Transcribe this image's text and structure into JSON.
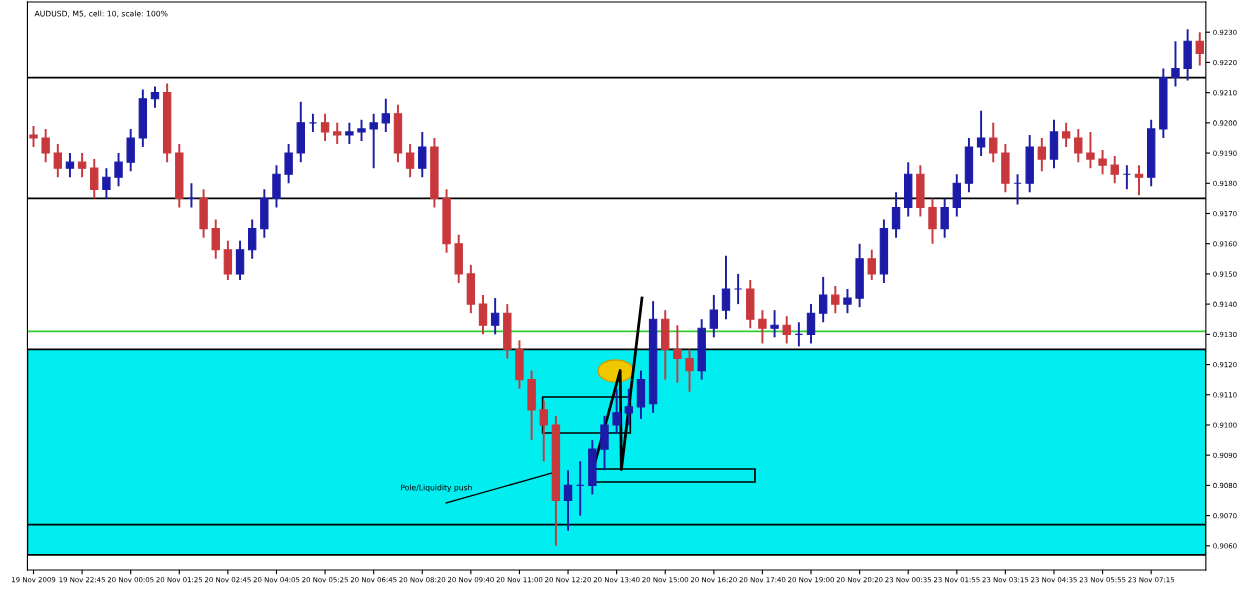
{
  "chart_data": {
    "type": "candlestick",
    "title": "AUDUSD, M5, cell: 10, scale: 100%",
    "categories": [
      "19 Nov 2009",
      null,
      null,
      null,
      "19 Nov 22:45",
      null,
      null,
      null,
      "20 Nov 00:05",
      null,
      null,
      null,
      "20 Nov 01:25",
      null,
      null,
      null,
      "20 Nov 02:45",
      null,
      null,
      null,
      "20 Nov 04:05",
      null,
      null,
      null,
      "20 Nov 05:25",
      null,
      null,
      null,
      "20 Nov 06:45",
      null,
      null,
      null,
      "20 Nov 08:20",
      null,
      null,
      null,
      "20 Nov 09:40",
      null,
      null,
      null,
      "20 Nov 11:00",
      null,
      null,
      null,
      "20 Nov 12:20",
      null,
      null,
      null,
      "20 Nov 13:40",
      null,
      null,
      null,
      "20 Nov 15:00",
      null,
      null,
      null,
      "20 Nov 16:20",
      null,
      null,
      null,
      "20 Nov 17:40",
      null,
      null,
      null,
      "20 Nov 19:00",
      null,
      null,
      null,
      "20 Nov 20:20",
      null,
      null,
      null,
      "23 Nov 00:35",
      null,
      null,
      null,
      "23 Nov 01:55",
      null,
      null,
      null,
      "23 Nov 03:15",
      null,
      null,
      null,
      "23 Nov 04:35",
      null,
      null,
      null,
      "23 Nov 05:55",
      null,
      null,
      null,
      "23 Nov 07:15",
      null,
      null,
      null,
      null
    ],
    "ohlc": [
      [
        0.9196,
        0.9199,
        0.9192,
        0.9195
      ],
      [
        0.9195,
        0.9198,
        0.9187,
        0.919
      ],
      [
        0.919,
        0.9193,
        0.9182,
        0.9185
      ],
      [
        0.9185,
        0.919,
        0.9182,
        0.9187
      ],
      [
        0.9187,
        0.919,
        0.9182,
        0.9185
      ],
      [
        0.9185,
        0.9188,
        0.9175,
        0.9178
      ],
      [
        0.9178,
        0.9185,
        0.9175,
        0.9182
      ],
      [
        0.9182,
        0.919,
        0.9179,
        0.9187
      ],
      [
        0.9187,
        0.9198,
        0.9184,
        0.9195
      ],
      [
        0.9195,
        0.9211,
        0.9192,
        0.9208
      ],
      [
        0.9208,
        0.9212,
        0.9205,
        0.921
      ],
      [
        0.921,
        0.9213,
        0.9187,
        0.919
      ],
      [
        0.919,
        0.9193,
        0.9172,
        0.9175
      ],
      [
        0.9175,
        0.918,
        0.9172,
        0.9175
      ],
      [
        0.9175,
        0.9178,
        0.9162,
        0.9165
      ],
      [
        0.9165,
        0.9168,
        0.9155,
        0.9158
      ],
      [
        0.9158,
        0.9161,
        0.9148,
        0.915
      ],
      [
        0.915,
        0.9161,
        0.9148,
        0.9158
      ],
      [
        0.9158,
        0.9168,
        0.9155,
        0.9165
      ],
      [
        0.9165,
        0.9178,
        0.9162,
        0.9175
      ],
      [
        0.9175,
        0.9186,
        0.9172,
        0.9183
      ],
      [
        0.9183,
        0.9193,
        0.918,
        0.919
      ],
      [
        0.919,
        0.9207,
        0.9187,
        0.92
      ],
      [
        0.92,
        0.9203,
        0.9197,
        0.92
      ],
      [
        0.92,
        0.9203,
        0.9194,
        0.9197
      ],
      [
        0.9197,
        0.92,
        0.9193,
        0.9196
      ],
      [
        0.9196,
        0.92,
        0.9193,
        0.9197
      ],
      [
        0.9197,
        0.9201,
        0.9194,
        0.9198
      ],
      [
        0.9198,
        0.9203,
        0.9185,
        0.92
      ],
      [
        0.92,
        0.9208,
        0.9197,
        0.9203
      ],
      [
        0.9203,
        0.9206,
        0.9187,
        0.919
      ],
      [
        0.919,
        0.9193,
        0.9182,
        0.9185
      ],
      [
        0.9185,
        0.9197,
        0.9182,
        0.9192
      ],
      [
        0.9192,
        0.9195,
        0.9172,
        0.9175
      ],
      [
        0.9175,
        0.9178,
        0.9157,
        0.916
      ],
      [
        0.916,
        0.9163,
        0.9147,
        0.915
      ],
      [
        0.915,
        0.9153,
        0.9137,
        0.914
      ],
      [
        0.914,
        0.9143,
        0.913,
        0.9133
      ],
      [
        0.9133,
        0.9142,
        0.913,
        0.9137
      ],
      [
        0.9137,
        0.914,
        0.9122,
        0.9125
      ],
      [
        0.9125,
        0.9128,
        0.9112,
        0.9115
      ],
      [
        0.9115,
        0.9118,
        0.9095,
        0.9105
      ],
      [
        0.9105,
        0.9108,
        0.9088,
        0.91
      ],
      [
        0.91,
        0.9103,
        0.906,
        0.9075
      ],
      [
        0.9075,
        0.9085,
        0.9065,
        0.908
      ],
      [
        0.908,
        0.9088,
        0.907,
        0.908
      ],
      [
        0.908,
        0.9095,
        0.9077,
        0.9092
      ],
      [
        0.9092,
        0.9103,
        0.9085,
        0.91
      ],
      [
        0.91,
        0.9112,
        0.9097,
        0.9104
      ],
      [
        0.9104,
        0.9112,
        0.91,
        0.9106
      ],
      [
        0.9106,
        0.9118,
        0.9102,
        0.9115
      ],
      [
        0.9107,
        0.9141,
        0.9104,
        0.9135
      ],
      [
        0.9135,
        0.9138,
        0.9115,
        0.9125
      ],
      [
        0.9125,
        0.9133,
        0.9114,
        0.9122
      ],
      [
        0.9122,
        0.9125,
        0.9111,
        0.9118
      ],
      [
        0.9118,
        0.9135,
        0.9115,
        0.9132
      ],
      [
        0.9132,
        0.9143,
        0.9129,
        0.9138
      ],
      [
        0.9138,
        0.9156,
        0.9135,
        0.9145
      ],
      [
        0.9145,
        0.915,
        0.914,
        0.9145
      ],
      [
        0.9145,
        0.9148,
        0.9132,
        0.9135
      ],
      [
        0.9135,
        0.9138,
        0.9127,
        0.9132
      ],
      [
        0.9132,
        0.9138,
        0.9129,
        0.9133
      ],
      [
        0.9133,
        0.9136,
        0.9127,
        0.913
      ],
      [
        0.913,
        0.9134,
        0.9126,
        0.913
      ],
      [
        0.913,
        0.914,
        0.9127,
        0.9137
      ],
      [
        0.9137,
        0.9149,
        0.9134,
        0.9143
      ],
      [
        0.9143,
        0.9146,
        0.9137,
        0.914
      ],
      [
        0.914,
        0.9145,
        0.9137,
        0.9142
      ],
      [
        0.9142,
        0.916,
        0.9139,
        0.9155
      ],
      [
        0.9155,
        0.9158,
        0.9148,
        0.915
      ],
      [
        0.915,
        0.9168,
        0.9147,
        0.9165
      ],
      [
        0.9165,
        0.9177,
        0.9162,
        0.9172
      ],
      [
        0.9172,
        0.9187,
        0.9169,
        0.9183
      ],
      [
        0.9183,
        0.9186,
        0.9169,
        0.9172
      ],
      [
        0.9172,
        0.9175,
        0.916,
        0.9165
      ],
      [
        0.9165,
        0.9175,
        0.9162,
        0.9172
      ],
      [
        0.9172,
        0.9183,
        0.9169,
        0.918
      ],
      [
        0.918,
        0.9195,
        0.9177,
        0.9192
      ],
      [
        0.9192,
        0.9204,
        0.9189,
        0.9195
      ],
      [
        0.9195,
        0.92,
        0.9187,
        0.919
      ],
      [
        0.919,
        0.9193,
        0.9177,
        0.918
      ],
      [
        0.918,
        0.9183,
        0.9173,
        0.918
      ],
      [
        0.918,
        0.9196,
        0.9177,
        0.9192
      ],
      [
        0.9192,
        0.9195,
        0.9184,
        0.9188
      ],
      [
        0.9188,
        0.9201,
        0.9185,
        0.9197
      ],
      [
        0.9197,
        0.92,
        0.9192,
        0.9195
      ],
      [
        0.9195,
        0.9198,
        0.9187,
        0.919
      ],
      [
        0.919,
        0.9197,
        0.9185,
        0.9188
      ],
      [
        0.9188,
        0.9191,
        0.9183,
        0.9186
      ],
      [
        0.9186,
        0.9189,
        0.918,
        0.9183
      ],
      [
        0.9183,
        0.9186,
        0.9178,
        0.9183
      ],
      [
        0.9183,
        0.9186,
        0.9176,
        0.9182
      ],
      [
        0.9182,
        0.9201,
        0.9179,
        0.9198
      ],
      [
        0.9198,
        0.9218,
        0.9195,
        0.9215
      ],
      [
        0.9215,
        0.9227,
        0.9212,
        0.9218
      ],
      [
        0.9218,
        0.9231,
        0.9214,
        0.9227
      ],
      [
        0.9227,
        0.923,
        0.9219,
        0.9223
      ]
    ],
    "colors": [
      "#c8383c",
      "#c8383c",
      "#c8383c",
      "#1c1ca8",
      "#c8383c",
      "#c8383c",
      "#1c1ca8",
      "#1c1ca8",
      "#1c1ca8",
      "#1c1ca8",
      "#1c1ca8",
      "#c8383c",
      "#c8383c",
      "#1c1ca8",
      "#c8383c",
      "#c8383c",
      "#c8383c",
      "#1c1ca8",
      "#1c1ca8",
      "#1c1ca8",
      "#1c1ca8",
      "#1c1ca8",
      "#1c1ca8",
      "#1c1ca8",
      "#c8383c",
      "#c8383c",
      "#1c1ca8",
      "#1c1ca8",
      "#1c1ca8",
      "#1c1ca8",
      "#c8383c",
      "#c8383c",
      "#1c1ca8",
      "#c8383c",
      "#c8383c",
      "#c8383c",
      "#c8383c",
      "#c8383c",
      "#1c1ca8",
      "#c8383c",
      "#c8383c",
      "#c8383c",
      "#c8383c",
      "#c8383c",
      "#1c1ca8",
      "#1c1ca8",
      "#1c1ca8",
      "#1c1ca8",
      "#1c1ca8",
      "#1c1ca8",
      "#1c1ca8",
      "#1c1ca8",
      "#c8383c",
      "#c8383c",
      "#c8383c",
      "#1c1ca8",
      "#1c1ca8",
      "#1c1ca8",
      "#1c1ca8",
      "#c8383c",
      "#c8383c",
      "#1c1ca8",
      "#c8383c",
      "#1c1ca8",
      "#1c1ca8",
      "#1c1ca8",
      "#c8383c",
      "#1c1ca8",
      "#1c1ca8",
      "#c8383c",
      "#1c1ca8",
      "#1c1ca8",
      "#1c1ca8",
      "#c8383c",
      "#c8383c",
      "#1c1ca8",
      "#1c1ca8",
      "#1c1ca8",
      "#1c1ca8",
      "#c8383c",
      "#c8383c",
      "#1c1ca8",
      "#1c1ca8",
      "#c8383c",
      "#1c1ca8",
      "#c8383c",
      "#c8383c",
      "#c8383c",
      "#c8383c",
      "#c8383c",
      "#1c1ca8",
      "#c8383c",
      "#1c1ca8",
      "#1c1ca8",
      "#1c1ca8",
      "#1c1ca8",
      "#c8383c"
    ],
    "ylim": [
      0.9052,
      0.924
    ],
    "yticks": [
      {
        "value": 0.906,
        "label": "0.9060"
      },
      {
        "value": 0.907,
        "label": "0.9070"
      },
      {
        "value": 0.908,
        "label": "0.9080"
      },
      {
        "value": 0.909,
        "label": "0.9090"
      },
      {
        "value": 0.91,
        "label": "0.9100"
      },
      {
        "value": 0.911,
        "label": "0.9110"
      },
      {
        "value": 0.912,
        "label": "0.9120"
      },
      {
        "value": 0.913,
        "label": "0.9130"
      },
      {
        "value": 0.914,
        "label": "0.9140"
      },
      {
        "value": 0.915,
        "label": "0.9150"
      },
      {
        "value": 0.916,
        "label": "0.9160"
      },
      {
        "value": 0.917,
        "label": "0.9170"
      },
      {
        "value": 0.918,
        "label": "0.9180"
      },
      {
        "value": 0.919,
        "label": "0.9190"
      },
      {
        "value": 0.92,
        "label": "0.9200"
      },
      {
        "value": 0.921,
        "label": "0.9210"
      },
      {
        "value": 0.922,
        "label": "0.9220"
      },
      {
        "value": 0.923,
        "label": "0.9230"
      }
    ],
    "bands": [
      {
        "axis": "y",
        "from": 0.9057,
        "to": 0.9125,
        "color": "#00eef0"
      }
    ],
    "ref_lines": [
      {
        "axis": "y",
        "value": 0.9215,
        "color": "#000000"
      },
      {
        "axis": "y",
        "value": 0.9175,
        "color": "#000000"
      },
      {
        "axis": "y",
        "value": 0.9067,
        "color": "#000000"
      },
      {
        "axis": "y",
        "value": 0.9131,
        "color": "#33cc33"
      }
    ],
    "annotations": [
      "Pole/Liquidity push"
    ],
    "grid": false,
    "legend": false
  }
}
